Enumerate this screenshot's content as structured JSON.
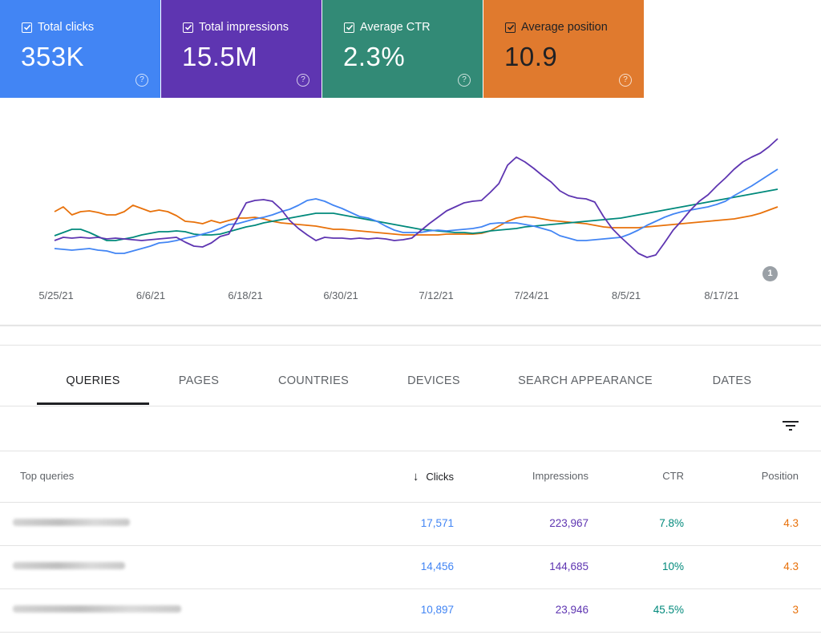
{
  "metrics": [
    {
      "label": "Total clicks",
      "value": "353K",
      "color": "#4285f4",
      "checked": true
    },
    {
      "label": "Total impressions",
      "value": "15.5M",
      "color": "#5e35b1",
      "checked": true
    },
    {
      "label": "Average CTR",
      "value": "2.3%",
      "color": "#00897b",
      "checked": true
    },
    {
      "label": "Average position",
      "value": "10.9",
      "color": "#e8710a",
      "checked": true
    }
  ],
  "help_glyph": "?",
  "annotation_count": "1",
  "chart_data": {
    "type": "line",
    "x_tick_labels": [
      "5/25/21",
      "6/6/21",
      "6/18/21",
      "6/30/21",
      "7/12/21",
      "7/24/21",
      "8/5/21",
      "8/17/21"
    ],
    "y_axis_labels_shown": false,
    "grid": false,
    "series": [
      {
        "name": "Total impressions",
        "color": "#5e35b1",
        "values": [
          300,
          296,
          297,
          296,
          297,
          296,
          298,
          297,
          298,
          299,
          300,
          299,
          298,
          297,
          296,
          302,
          307,
          308,
          303,
          295,
          292,
          273,
          253,
          250,
          249,
          251,
          261,
          275,
          285,
          293,
          300,
          296,
          297,
          297,
          298,
          297,
          298,
          297,
          298,
          300,
          299,
          297,
          288,
          279,
          271,
          263,
          258,
          253,
          251,
          250,
          240,
          229,
          206,
          196,
          202,
          210,
          219,
          227,
          238,
          244,
          247,
          248,
          252,
          270,
          285,
          296,
          306,
          316,
          321,
          318,
          303,
          287,
          275,
          262,
          251,
          243,
          232,
          222,
          211,
          202,
          196,
          191,
          183,
          173
        ]
      },
      {
        "name": "Total clicks",
        "color": "#4285f4",
        "values": [
          310,
          311,
          312,
          311,
          310,
          312,
          313,
          316,
          316,
          313,
          310,
          307,
          303,
          302,
          300,
          297,
          295,
          292,
          289,
          285,
          280,
          279,
          276,
          273,
          271,
          268,
          264,
          261,
          256,
          250,
          248,
          251,
          256,
          260,
          265,
          270,
          272,
          276,
          282,
          287,
          290,
          290,
          290,
          288,
          287,
          288,
          287,
          286,
          285,
          283,
          279,
          278,
          278,
          278,
          280,
          282,
          285,
          288,
          294,
          297,
          300,
          300,
          299,
          298,
          297,
          296,
          292,
          287,
          281,
          276,
          271,
          267,
          264,
          262,
          260,
          258,
          255,
          251,
          244,
          238,
          232,
          225,
          218,
          211
        ]
      },
      {
        "name": "Average CTR",
        "color": "#00897b",
        "values": [
          294,
          290,
          286,
          286,
          290,
          295,
          300,
          300,
          298,
          296,
          293,
          291,
          289,
          289,
          288,
          289,
          292,
          293,
          293,
          292,
          289,
          286,
          283,
          281,
          278,
          276,
          274,
          272,
          270,
          268,
          266,
          266,
          266,
          268,
          270,
          272,
          274,
          276,
          278,
          280,
          282,
          284,
          286,
          287,
          288,
          289,
          290,
          290,
          291,
          290,
          288,
          287,
          286,
          285,
          283,
          282,
          281,
          280,
          279,
          278,
          277,
          276,
          275,
          274,
          273,
          272,
          270,
          268,
          266,
          264,
          262,
          260,
          258,
          256,
          254,
          252,
          250,
          248,
          246,
          244,
          242,
          240,
          238,
          236
        ]
      },
      {
        "name": "Average position",
        "color": "#e8710a",
        "values": [
          264,
          258,
          268,
          264,
          263,
          265,
          268,
          268,
          264,
          256,
          260,
          264,
          262,
          264,
          269,
          276,
          277,
          279,
          275,
          278,
          275,
          272,
          272,
          271,
          273,
          276,
          278,
          279,
          280,
          281,
          282,
          284,
          286,
          286,
          287,
          288,
          289,
          290,
          291,
          292,
          293,
          293,
          293,
          293,
          293,
          292,
          292,
          292,
          292,
          291,
          288,
          282,
          276,
          272,
          270,
          271,
          273,
          275,
          276,
          277,
          278,
          279,
          281,
          283,
          284,
          284,
          284,
          284,
          283,
          282,
          281,
          280,
          279,
          278,
          277,
          276,
          275,
          274,
          273,
          271,
          269,
          266,
          262,
          258
        ]
      }
    ]
  },
  "tabs": [
    "QUERIES",
    "PAGES",
    "COUNTRIES",
    "DEVICES",
    "SEARCH APPEARANCE",
    "DATES"
  ],
  "table": {
    "headers": {
      "query": "Top queries",
      "clicks": "Clicks",
      "impressions": "Impressions",
      "ctr": "CTR",
      "position": "Position"
    },
    "sort_arrow": "↓",
    "rows": [
      {
        "clicks": "17,571",
        "impressions": "223,967",
        "ctr": "7.8%",
        "position": "4.3"
      },
      {
        "clicks": "14,456",
        "impressions": "144,685",
        "ctr": "10%",
        "position": "4.3"
      },
      {
        "clicks": "10,897",
        "impressions": "23,946",
        "ctr": "45.5%",
        "position": "3"
      }
    ]
  }
}
